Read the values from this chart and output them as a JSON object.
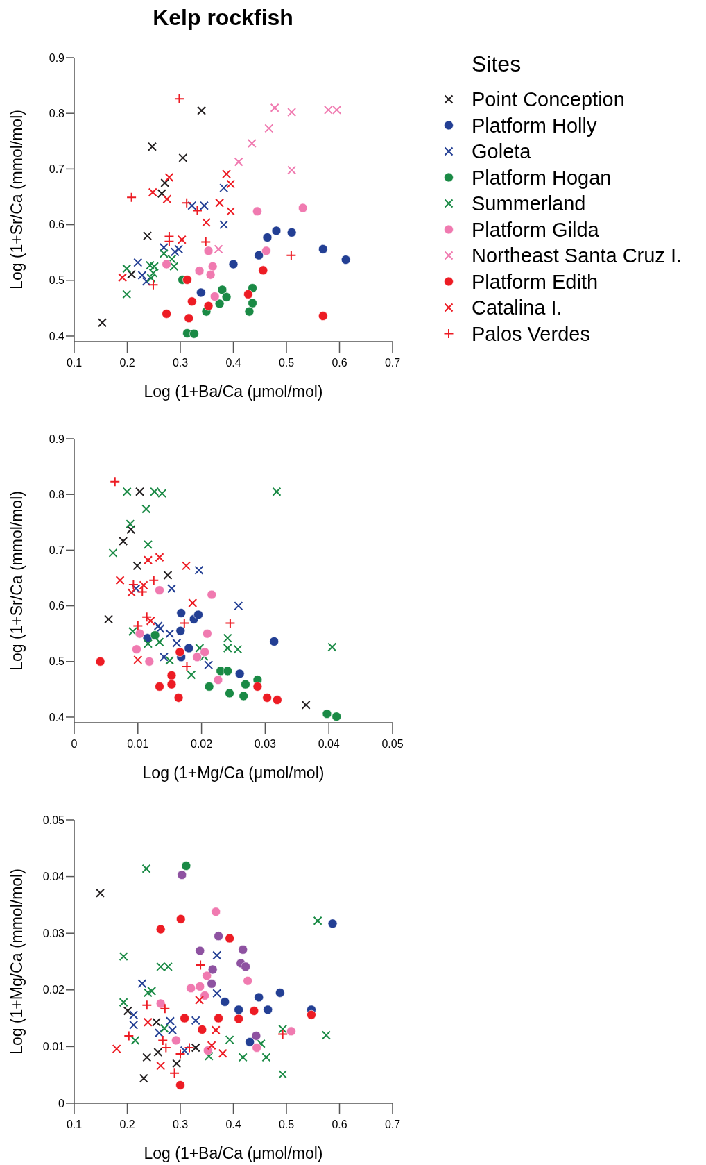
{
  "chart_data": [
    {
      "type": "scatter",
      "title": "Kelp rockfish",
      "xlabel": "Log (1+Ba/Ca (μmol/mol)",
      "ylabel": "Log (1+Sr/Ca (mmol/mol)",
      "legend_title": "Sites",
      "legend": "right",
      "xlim": [
        0.1,
        0.7
      ],
      "xticks": [
        0.1,
        0.2,
        0.3,
        0.4,
        0.5,
        0.6,
        0.7
      ],
      "ylim": [
        0.39,
        0.9
      ],
      "yticks": [
        0.4,
        0.5,
        0.6,
        0.7,
        0.8,
        0.9
      ],
      "grid": false,
      "series": [
        {
          "name": "Point Conception",
          "color": "#231f20",
          "marker": "x",
          "x": [
            0.153,
            0.208,
            0.238,
            0.247,
            0.305,
            0.271,
            0.265,
            0.34
          ],
          "values": [
            0.424,
            0.511,
            0.58,
            0.74,
            0.72,
            0.675,
            0.656,
            0.805
          ]
        },
        {
          "name": "Platform Holly",
          "color": "#233f94",
          "marker": "circle",
          "x": [
            0.339,
            0.4,
            0.448,
            0.464,
            0.481,
            0.51,
            0.569,
            0.612
          ],
          "values": [
            0.478,
            0.529,
            0.545,
            0.577,
            0.589,
            0.586,
            0.556,
            0.537
          ]
        },
        {
          "name": "Goleta",
          "color": "#233f94",
          "marker": "x",
          "x": [
            0.22,
            0.228,
            0.236,
            0.269,
            0.29,
            0.297,
            0.322,
            0.345,
            0.382,
            0.382
          ],
          "values": [
            0.532,
            0.509,
            0.498,
            0.559,
            0.551,
            0.556,
            0.634,
            0.634,
            0.666,
            0.6
          ]
        },
        {
          "name": "Platform Hogan",
          "color": "#1a8a45",
          "marker": "circle",
          "x": [
            0.304,
            0.313,
            0.326,
            0.349,
            0.374,
            0.379,
            0.387,
            0.436,
            0.436,
            0.43
          ],
          "values": [
            0.501,
            0.405,
            0.404,
            0.444,
            0.458,
            0.483,
            0.47,
            0.486,
            0.459,
            0.444
          ]
        },
        {
          "name": "Summerland",
          "color": "#1a8a45",
          "marker": "x",
          "x": [
            0.199,
            0.199,
            0.243,
            0.251,
            0.249,
            0.245,
            0.269,
            0.284,
            0.288
          ],
          "values": [
            0.521,
            0.475,
            0.527,
            0.525,
            0.513,
            0.504,
            0.548,
            0.538,
            0.525
          ]
        },
        {
          "name": "Platform Gilda",
          "color": "#f07ab0",
          "marker": "circle",
          "x": [
            0.274,
            0.353,
            0.336,
            0.361,
            0.357,
            0.365,
            0.445,
            0.462,
            0.531
          ],
          "values": [
            0.529,
            0.553,
            0.517,
            0.525,
            0.51,
            0.471,
            0.624,
            0.553,
            0.63
          ]
        },
        {
          "name": "Northeast Santa Cruz I.",
          "color": "#f07ab0",
          "marker": "x",
          "x": [
            0.372,
            0.41,
            0.435,
            0.467,
            0.478,
            0.51,
            0.51,
            0.579,
            0.595
          ],
          "values": [
            0.556,
            0.713,
            0.746,
            0.773,
            0.81,
            0.802,
            0.698,
            0.806,
            0.806
          ]
        },
        {
          "name": "Platform Edith",
          "color": "#ed1c24",
          "marker": "circle",
          "x": [
            0.313,
            0.274,
            0.322,
            0.316,
            0.353,
            0.428,
            0.456,
            0.569
          ],
          "values": [
            0.501,
            0.44,
            0.462,
            0.432,
            0.454,
            0.475,
            0.518,
            0.436
          ]
        },
        {
          "name": "Catalina I.",
          "color": "#ed1c24",
          "marker": "x",
          "x": [
            0.191,
            0.248,
            0.279,
            0.275,
            0.303,
            0.349,
            0.374,
            0.387,
            0.395,
            0.395
          ],
          "values": [
            0.505,
            0.658,
            0.685,
            0.646,
            0.573,
            0.604,
            0.639,
            0.691,
            0.673,
            0.624
          ]
        },
        {
          "name": "Palos Verdes",
          "color": "#ed1c24",
          "marker": "cross",
          "x": [
            0.298,
            0.208,
            0.279,
            0.279,
            0.249,
            0.312,
            0.332,
            0.348,
            0.509
          ],
          "values": [
            0.826,
            0.649,
            0.579,
            0.57,
            0.492,
            0.639,
            0.625,
            0.569,
            0.545
          ]
        }
      ]
    },
    {
      "type": "scatter",
      "xlabel": "Log (1+Mg/Ca (μmol/mol)",
      "ylabel": "Log (1+Sr/Ca (mmol/mol)",
      "xlim": [
        0,
        0.05
      ],
      "xticks": [
        0,
        0.01,
        0.02,
        0.03,
        0.04,
        0.05
      ],
      "ylim": [
        0.39,
        0.9
      ],
      "yticks": [
        0.4,
        0.5,
        0.6,
        0.7,
        0.8,
        0.9
      ],
      "grid": false,
      "series": [
        {
          "color": "#231f20",
          "marker": "x",
          "x": [
            0.0054,
            0.0077,
            0.0089,
            0.0103,
            0.0099,
            0.0147,
            0.0364
          ],
          "values": [
            0.576,
            0.716,
            0.737,
            0.805,
            0.672,
            0.655,
            0.422
          ]
        },
        {
          "color": "#233f94",
          "marker": "circle",
          "x": [
            0.0168,
            0.0188,
            0.0195,
            0.0167,
            0.0115,
            0.018,
            0.0168,
            0.026,
            0.0314
          ],
          "values": [
            0.587,
            0.576,
            0.584,
            0.555,
            0.542,
            0.524,
            0.508,
            0.478,
            0.536
          ]
        },
        {
          "color": "#233f94",
          "marker": "x",
          "x": [
            0.0097,
            0.0153,
            0.0196,
            0.0258,
            0.0132,
            0.0135,
            0.015,
            0.0161,
            0.0141,
            0.0211
          ],
          "values": [
            0.631,
            0.631,
            0.664,
            0.6,
            0.564,
            0.559,
            0.55,
            0.533,
            0.508,
            0.494
          ]
        },
        {
          "color": "#1a8a45",
          "marker": "circle",
          "x": [
            0.0127,
            0.023,
            0.0241,
            0.0212,
            0.0244,
            0.0266,
            0.0269,
            0.0288,
            0.0397,
            0.0412
          ],
          "values": [
            0.547,
            0.483,
            0.483,
            0.455,
            0.443,
            0.438,
            0.459,
            0.467,
            0.406,
            0.401
          ]
        },
        {
          "color": "#1a8a45",
          "marker": "x",
          "x": [
            0.0083,
            0.0126,
            0.0138,
            0.0113,
            0.0088,
            0.0061,
            0.0116,
            0.0092,
            0.0116,
            0.0134,
            0.015,
            0.0184,
            0.0197,
            0.0204,
            0.0241,
            0.0241,
            0.0257,
            0.0318,
            0.0405
          ],
          "values": [
            0.805,
            0.805,
            0.802,
            0.774,
            0.747,
            0.695,
            0.71,
            0.554,
            0.532,
            0.535,
            0.502,
            0.476,
            0.524,
            0.509,
            0.542,
            0.524,
            0.522,
            0.805,
            0.526
          ]
        },
        {
          "color": "#f07ab0",
          "marker": "circle",
          "x": [
            0.0134,
            0.0216,
            0.0209,
            0.0103,
            0.0098,
            0.0118,
            0.0193,
            0.0205,
            0.0226
          ],
          "values": [
            0.628,
            0.62,
            0.55,
            0.55,
            0.522,
            0.5,
            0.508,
            0.517,
            0.467
          ]
        },
        {
          "color": "#ed1c24",
          "marker": "circle",
          "x": [
            0.0041,
            0.0166,
            0.0153,
            0.0153,
            0.0134,
            0.0164,
            0.0288,
            0.0303,
            0.0319
          ],
          "values": [
            0.5,
            0.517,
            0.475,
            0.459,
            0.455,
            0.435,
            0.455,
            0.435,
            0.431
          ]
        },
        {
          "color": "#ed1c24",
          "marker": "x",
          "x": [
            0.0072,
            0.009,
            0.0109,
            0.0116,
            0.0134,
            0.0176,
            0.0186,
            0.012,
            0.01
          ],
          "values": [
            0.646,
            0.624,
            0.637,
            0.682,
            0.687,
            0.672,
            0.605,
            0.573,
            0.503
          ]
        },
        {
          "color": "#ed1c24",
          "marker": "cross",
          "x": [
            0.0064,
            0.0093,
            0.0107,
            0.0125,
            0.0114,
            0.01,
            0.0173,
            0.0177,
            0.0245
          ],
          "values": [
            0.823,
            0.638,
            0.625,
            0.646,
            0.58,
            0.564,
            0.569,
            0.491,
            0.569
          ]
        }
      ]
    },
    {
      "type": "scatter",
      "xlabel": "Log (1+Ba/Ca (μmol/mol)",
      "ylabel": "Log (1+Mg/Ca (mmol/mol)",
      "xlim": [
        0.1,
        0.7
      ],
      "xticks": [
        0.1,
        0.2,
        0.3,
        0.4,
        0.5,
        0.6,
        0.7
      ],
      "ylim": [
        0,
        0.05
      ],
      "yticks": [
        0,
        0.01,
        0.02,
        0.03,
        0.04,
        0.05
      ],
      "grid": false,
      "series": [
        {
          "color": "#231f20",
          "marker": "x",
          "x": [
            0.149,
            0.201,
            0.255,
            0.258,
            0.237,
            0.231,
            0.293,
            0.329
          ],
          "values": [
            0.0371,
            0.0163,
            0.0143,
            0.009,
            0.0081,
            0.0044,
            0.007,
            0.0098
          ]
        },
        {
          "color": "#233f94",
          "marker": "circle",
          "x": [
            0.384,
            0.41,
            0.448,
            0.465,
            0.488,
            0.547,
            0.587,
            0.431
          ],
          "values": [
            0.0179,
            0.0165,
            0.0187,
            0.0165,
            0.0195,
            0.0165,
            0.0317,
            0.0108
          ]
        },
        {
          "color": "#233f94",
          "marker": "x",
          "x": [
            0.228,
            0.212,
            0.212,
            0.281,
            0.285,
            0.26,
            0.308,
            0.329,
            0.369,
            0.369
          ],
          "values": [
            0.0211,
            0.0156,
            0.0138,
            0.0145,
            0.0129,
            0.0124,
            0.0093,
            0.0146,
            0.0261,
            0.0194
          ]
        },
        {
          "color": "#1a8a45",
          "marker": "circle",
          "x": [
            0.311
          ],
          "values": [
            0.0419
          ]
        },
        {
          "color": "#1a8a45",
          "marker": "x",
          "x": [
            0.236,
            0.193,
            0.263,
            0.277,
            0.239,
            0.246,
            0.193,
            0.215,
            0.27,
            0.354,
            0.393,
            0.418,
            0.452,
            0.462,
            0.493,
            0.493,
            0.559,
            0.575
          ],
          "values": [
            0.0414,
            0.0259,
            0.0241,
            0.0241,
            0.0195,
            0.0198,
            0.0178,
            0.0111,
            0.0132,
            0.0083,
            0.0112,
            0.0081,
            0.0105,
            0.0081,
            0.0131,
            0.0051,
            0.0322,
            0.012
          ]
        },
        {
          "color": "#f07ab0",
          "marker": "circle",
          "x": [
            0.367,
            0.35,
            0.32,
            0.337,
            0.346,
            0.263,
            0.292,
            0.352,
            0.427,
            0.444,
            0.509
          ],
          "values": [
            0.0338,
            0.0225,
            0.0203,
            0.0206,
            0.019,
            0.0176,
            0.0111,
            0.0093,
            0.0216,
            0.0098,
            0.0127
          ]
        },
        {
          "color": "#ed1c24",
          "marker": "circle",
          "x": [
            0.263,
            0.301,
            0.393,
            0.308,
            0.341,
            0.372,
            0.41,
            0.439,
            0.547,
            0.3
          ],
          "values": [
            0.0307,
            0.0325,
            0.0291,
            0.015,
            0.013,
            0.015,
            0.0149,
            0.0163,
            0.0156,
            0.0032
          ]
        },
        {
          "color": "#ed1c24",
          "marker": "x",
          "x": [
            0.18,
            0.239,
            0.263,
            0.336,
            0.367,
            0.359,
            0.38
          ],
          "values": [
            0.0096,
            0.0143,
            0.0066,
            0.0182,
            0.0129,
            0.0102,
            0.0088
          ]
        },
        {
          "color": "#ed1c24",
          "marker": "cross",
          "x": [
            0.203,
            0.237,
            0.271,
            0.338,
            0.267,
            0.273,
            0.3,
            0.317,
            0.289,
            0.493
          ],
          "values": [
            0.0119,
            0.0173,
            0.0167,
            0.0244,
            0.0111,
            0.0098,
            0.0087,
            0.0098,
            0.0053,
            0.0122
          ]
        },
        {
          "color": "#8e52a1",
          "marker": "circle",
          "x": [
            0.303,
            0.372,
            0.337,
            0.361,
            0.359,
            0.418,
            0.414,
            0.423,
            0.443
          ],
          "values": [
            0.0403,
            0.0295,
            0.0269,
            0.0236,
            0.0211,
            0.0271,
            0.0247,
            0.0241,
            0.0119
          ]
        }
      ]
    }
  ]
}
